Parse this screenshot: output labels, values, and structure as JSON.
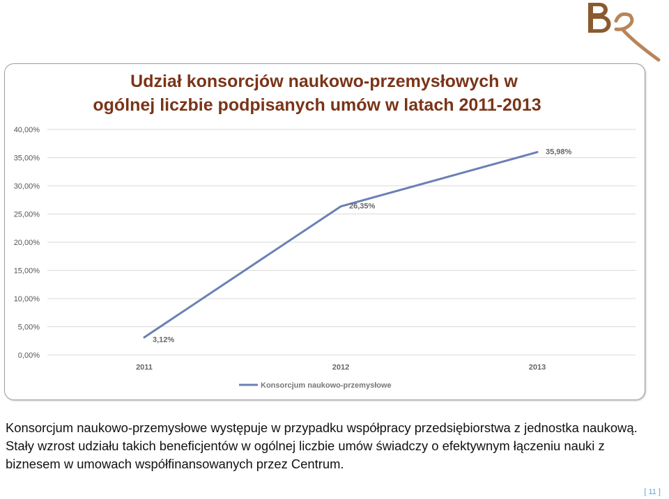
{
  "chart_data": {
    "type": "line",
    "title": "Udział konsorcjów naukowo-przemysłowych w ogólnej liczbie podpisanych umów w latach 2011-2013",
    "title_lines": [
      "Udział konsorcjów naukowo-przemysłowych w",
      "ogólnej liczbie podpisanych umów w latach 2011-2013"
    ],
    "categories": [
      "2011",
      "2012",
      "2013"
    ],
    "series": [
      {
        "name": "Konsorcjum naukowo-przemysłowe",
        "values": [
          3.12,
          26.35,
          35.98
        ],
        "color": "#6b7fb5"
      }
    ],
    "data_labels": [
      "3,12%",
      "26,35%",
      "35,98%"
    ],
    "y_ticks": [
      "0,00%",
      "5,00%",
      "10,00%",
      "15,00%",
      "20,00%",
      "25,00%",
      "30,00%",
      "35,00%",
      "40,00%"
    ],
    "ylim": [
      0,
      40
    ],
    "grid": true,
    "legend_position": "bottom"
  },
  "description": "Konsorcjum naukowo-przemysłowe występuje w przypadku współpracy przedsiębiorstwa z jednostka naukową. Stały wzrost udziału takich beneficjentów w ogólnej liczbie umów świadczy o efektywnym łączeniu nauki z biznesem w umowach współfinansowanych przez Centrum.",
  "page_number": "[ 11 ]",
  "colors": {
    "title": "#7a3418",
    "line": "#6b7fb5",
    "logo": "#8a5a30",
    "page_number": "#5aa0d8"
  }
}
